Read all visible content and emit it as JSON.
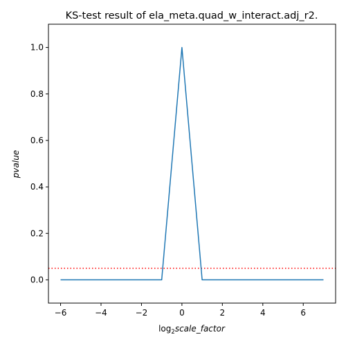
{
  "chart_data": {
    "type": "line",
    "title": "KS-test result of ela_meta.quad_w_interact.adj_r2.",
    "xlabel": {
      "prefix": "log",
      "subscript": "2",
      "main": "scale_factor"
    },
    "ylabel": "pvalue",
    "xlim": [
      -6.6,
      7.6
    ],
    "ylim": [
      -0.1,
      1.1
    ],
    "xticks": [
      -6,
      -4,
      -2,
      0,
      2,
      4,
      6
    ],
    "xtick_labels": [
      "−6",
      "−4",
      "−2",
      "0",
      "2",
      "4",
      "6"
    ],
    "yticks": [
      0.0,
      0.2,
      0.4,
      0.6,
      0.8,
      1.0
    ],
    "ytick_labels": [
      "0.0",
      "0.2",
      "0.4",
      "0.6",
      "0.8",
      "1.0"
    ],
    "grid": false,
    "series": [
      {
        "color": "#1f77b4",
        "x": [
          -6,
          -5,
          -4,
          -3,
          -2,
          -1,
          0,
          1,
          2,
          3,
          4,
          5,
          6,
          7
        ],
        "y": [
          0,
          0,
          0,
          0,
          0,
          0,
          1,
          0,
          0,
          0,
          0,
          0,
          0,
          0
        ]
      }
    ],
    "reference_line": {
      "y": 0.05,
      "color": "#ff0000",
      "style": "dotted"
    }
  }
}
